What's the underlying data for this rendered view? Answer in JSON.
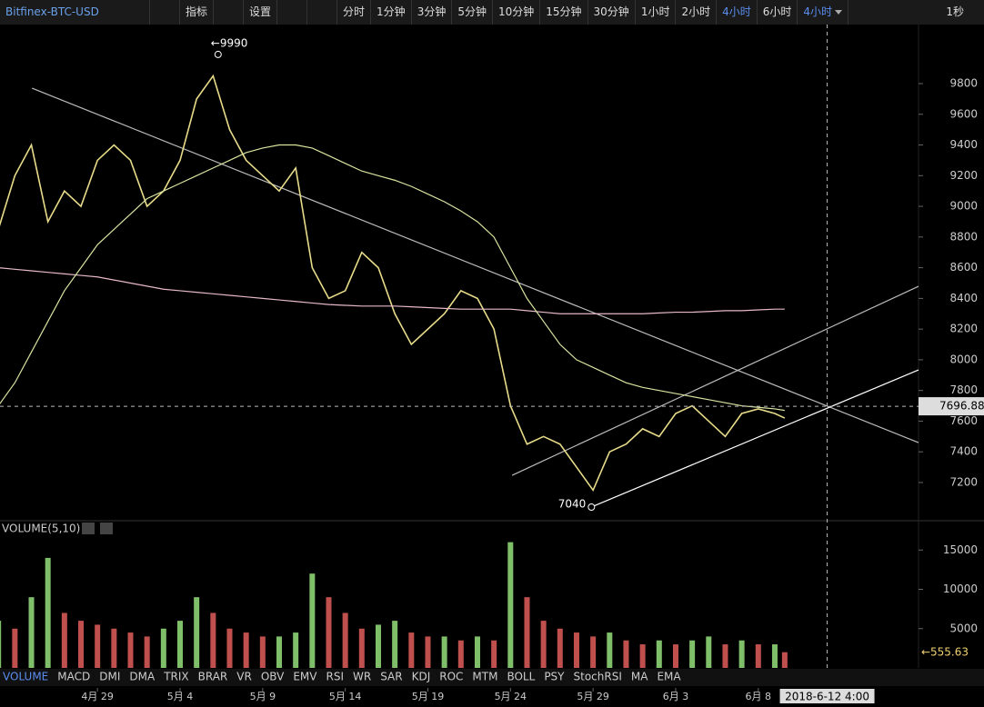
{
  "toolbar": {
    "symbol": "Bitfinex-BTC-USD",
    "indicator_button": "指标",
    "settings_button": "设置",
    "intervals": [
      "分时",
      "1分钟",
      "3分钟",
      "5分钟",
      "10分钟",
      "15分钟",
      "30分钟",
      "1小时",
      "2小时",
      "4小时",
      "6小时"
    ],
    "selected_interval": "4小时",
    "right_label": "1秒"
  },
  "indicators": [
    "VOLUME",
    "MACD",
    "DMI",
    "DMA",
    "TRIX",
    "BRAR",
    "VR",
    "OBV",
    "EMV",
    "RSI",
    "WR",
    "SAR",
    "KDJ",
    "ROC",
    "MTM",
    "BOLL",
    "PSY",
    "StochRSI",
    "MA",
    "EMA"
  ],
  "chart_data": [
    {
      "type": "line",
      "x": [
        -6,
        -5,
        -4,
        -3,
        -2,
        -1,
        0,
        1,
        2,
        3,
        4,
        5,
        6,
        7,
        8,
        9,
        10,
        11,
        12,
        13,
        14,
        15,
        16,
        17,
        18,
        19,
        20,
        21,
        22,
        23,
        24,
        25,
        26,
        27,
        28,
        29,
        30,
        31,
        32,
        33,
        34,
        35,
        36,
        37,
        38,
        39,
        40,
        41,
        41.6
      ],
      "series": [
        {
          "color": "#e8dc8a",
          "values": [
            8850,
            9200,
            9400,
            8900,
            9100,
            9000,
            9300,
            9400,
            9300,
            9000,
            9100,
            9300,
            9700,
            9850,
            9500,
            9300,
            9200,
            9100,
            9250,
            8600,
            8400,
            8450,
            8700,
            8600,
            8300,
            8100,
            8200,
            8300,
            8450,
            8400,
            8200,
            7700,
            7450,
            7500,
            7450,
            7300,
            7150,
            7400,
            7450,
            7550,
            7500,
            7650,
            7700,
            7600,
            7500,
            7650,
            7680,
            7650,
            7620
          ]
        },
        {
          "color": "#e6b8c8",
          "values": [
            8600,
            8590,
            8580,
            8570,
            8560,
            8550,
            8540,
            8520,
            8500,
            8480,
            8460,
            8450,
            8440,
            8430,
            8420,
            8410,
            8400,
            8390,
            8380,
            8370,
            8360,
            8355,
            8350,
            8350,
            8350,
            8345,
            8340,
            8335,
            8330,
            8330,
            8330,
            8330,
            8320,
            8310,
            8300,
            8300,
            8300,
            8300,
            8300,
            8300,
            8305,
            8310,
            8310,
            8315,
            8320,
            8320,
            8325,
            8330,
            8330
          ]
        },
        {
          "color": "#d8e4a0",
          "values": [
            7700,
            7850,
            8050,
            8250,
            8450,
            8600,
            8750,
            8850,
            8950,
            9050,
            9100,
            9150,
            9200,
            9250,
            9300,
            9350,
            9380,
            9400,
            9400,
            9380,
            9330,
            9280,
            9230,
            9200,
            9170,
            9130,
            9080,
            9030,
            8970,
            8900,
            8800,
            8600,
            8400,
            8250,
            8100,
            8000,
            7950,
            7900,
            7850,
            7820,
            7800,
            7780,
            7760,
            7740,
            7720,
            7700,
            7690,
            7680,
            7670
          ]
        }
      ],
      "trendlines": [
        {
          "color": "#bbbbbb",
          "x": [
            -3.96,
            49.7
          ],
          "y": [
            9770,
            7460
          ]
        },
        {
          "color": "#bbbbbb",
          "x": [
            25.1,
            49.7
          ],
          "y": [
            7247,
            8479
          ]
        },
        {
          "color": "#ffffff",
          "x": [
            29.9,
            49.7
          ],
          "y": [
            7040,
            7934
          ]
        }
      ],
      "annotations": [
        {
          "x": 7.3,
          "value": 9990,
          "label": "←9990"
        },
        {
          "x": 29.9,
          "value": 7040,
          "label": "7040"
        }
      ],
      "xlim": [
        -5.9,
        49.7
      ],
      "ylim": [
        6957,
        10185
      ],
      "xticks": [
        {
          "value": 0,
          "label": "4月 29"
        },
        {
          "value": 5,
          "label": "5月 4"
        },
        {
          "value": 10,
          "label": "5月 9"
        },
        {
          "value": 15,
          "label": "5月 14"
        },
        {
          "value": 20,
          "label": "5月 19"
        },
        {
          "value": 25,
          "label": "5月 24"
        },
        {
          "value": 30,
          "label": "5月 29"
        },
        {
          "value": 35,
          "label": "6月 3"
        },
        {
          "value": 40,
          "label": "6月 8"
        }
      ],
      "yticks": [
        7200,
        7400,
        7600,
        7800,
        8000,
        8200,
        8400,
        8600,
        8800,
        9000,
        9200,
        9400,
        9600,
        9800
      ],
      "last_price": 7696.88,
      "crosshair": {
        "x": 44.17,
        "label": "2018-6-12 4:00"
      }
    },
    {
      "type": "bar",
      "title": "VOLUME(5,10)",
      "x": [
        -6,
        -5,
        -4,
        -3,
        -2,
        -1,
        0,
        1,
        2,
        3,
        4,
        5,
        6,
        7,
        8,
        9,
        10,
        11,
        12,
        13,
        14,
        15,
        16,
        17,
        18,
        19,
        20,
        21,
        22,
        23,
        24,
        25,
        26,
        27,
        28,
        29,
        30,
        31,
        32,
        33,
        34,
        35,
        36,
        37,
        38,
        39,
        40,
        41,
        41.6
      ],
      "values": [
        6000,
        5000,
        9000,
        14000,
        7000,
        6000,
        5500,
        5000,
        4500,
        4000,
        5000,
        6000,
        9000,
        7000,
        5000,
        4500,
        4000,
        4000,
        4500,
        12000,
        9000,
        7000,
        5000,
        5500,
        6000,
        4500,
        4000,
        4000,
        3500,
        4000,
        3500,
        16000,
        9000,
        6000,
        5000,
        4500,
        4000,
        4500,
        3500,
        3000,
        3500,
        3000,
        3500,
        4000,
        3000,
        3500,
        3000,
        3000,
        2000
      ],
      "up_color": "#7fbf6a",
      "down_color": "#c0504d",
      "xlim": [
        -5.9,
        49.7
      ],
      "ylim": [
        0,
        18500
      ],
      "yticks": [
        5000,
        10000,
        15000
      ],
      "last_value": {
        "value": 555.63,
        "label": "←555.63"
      }
    }
  ]
}
